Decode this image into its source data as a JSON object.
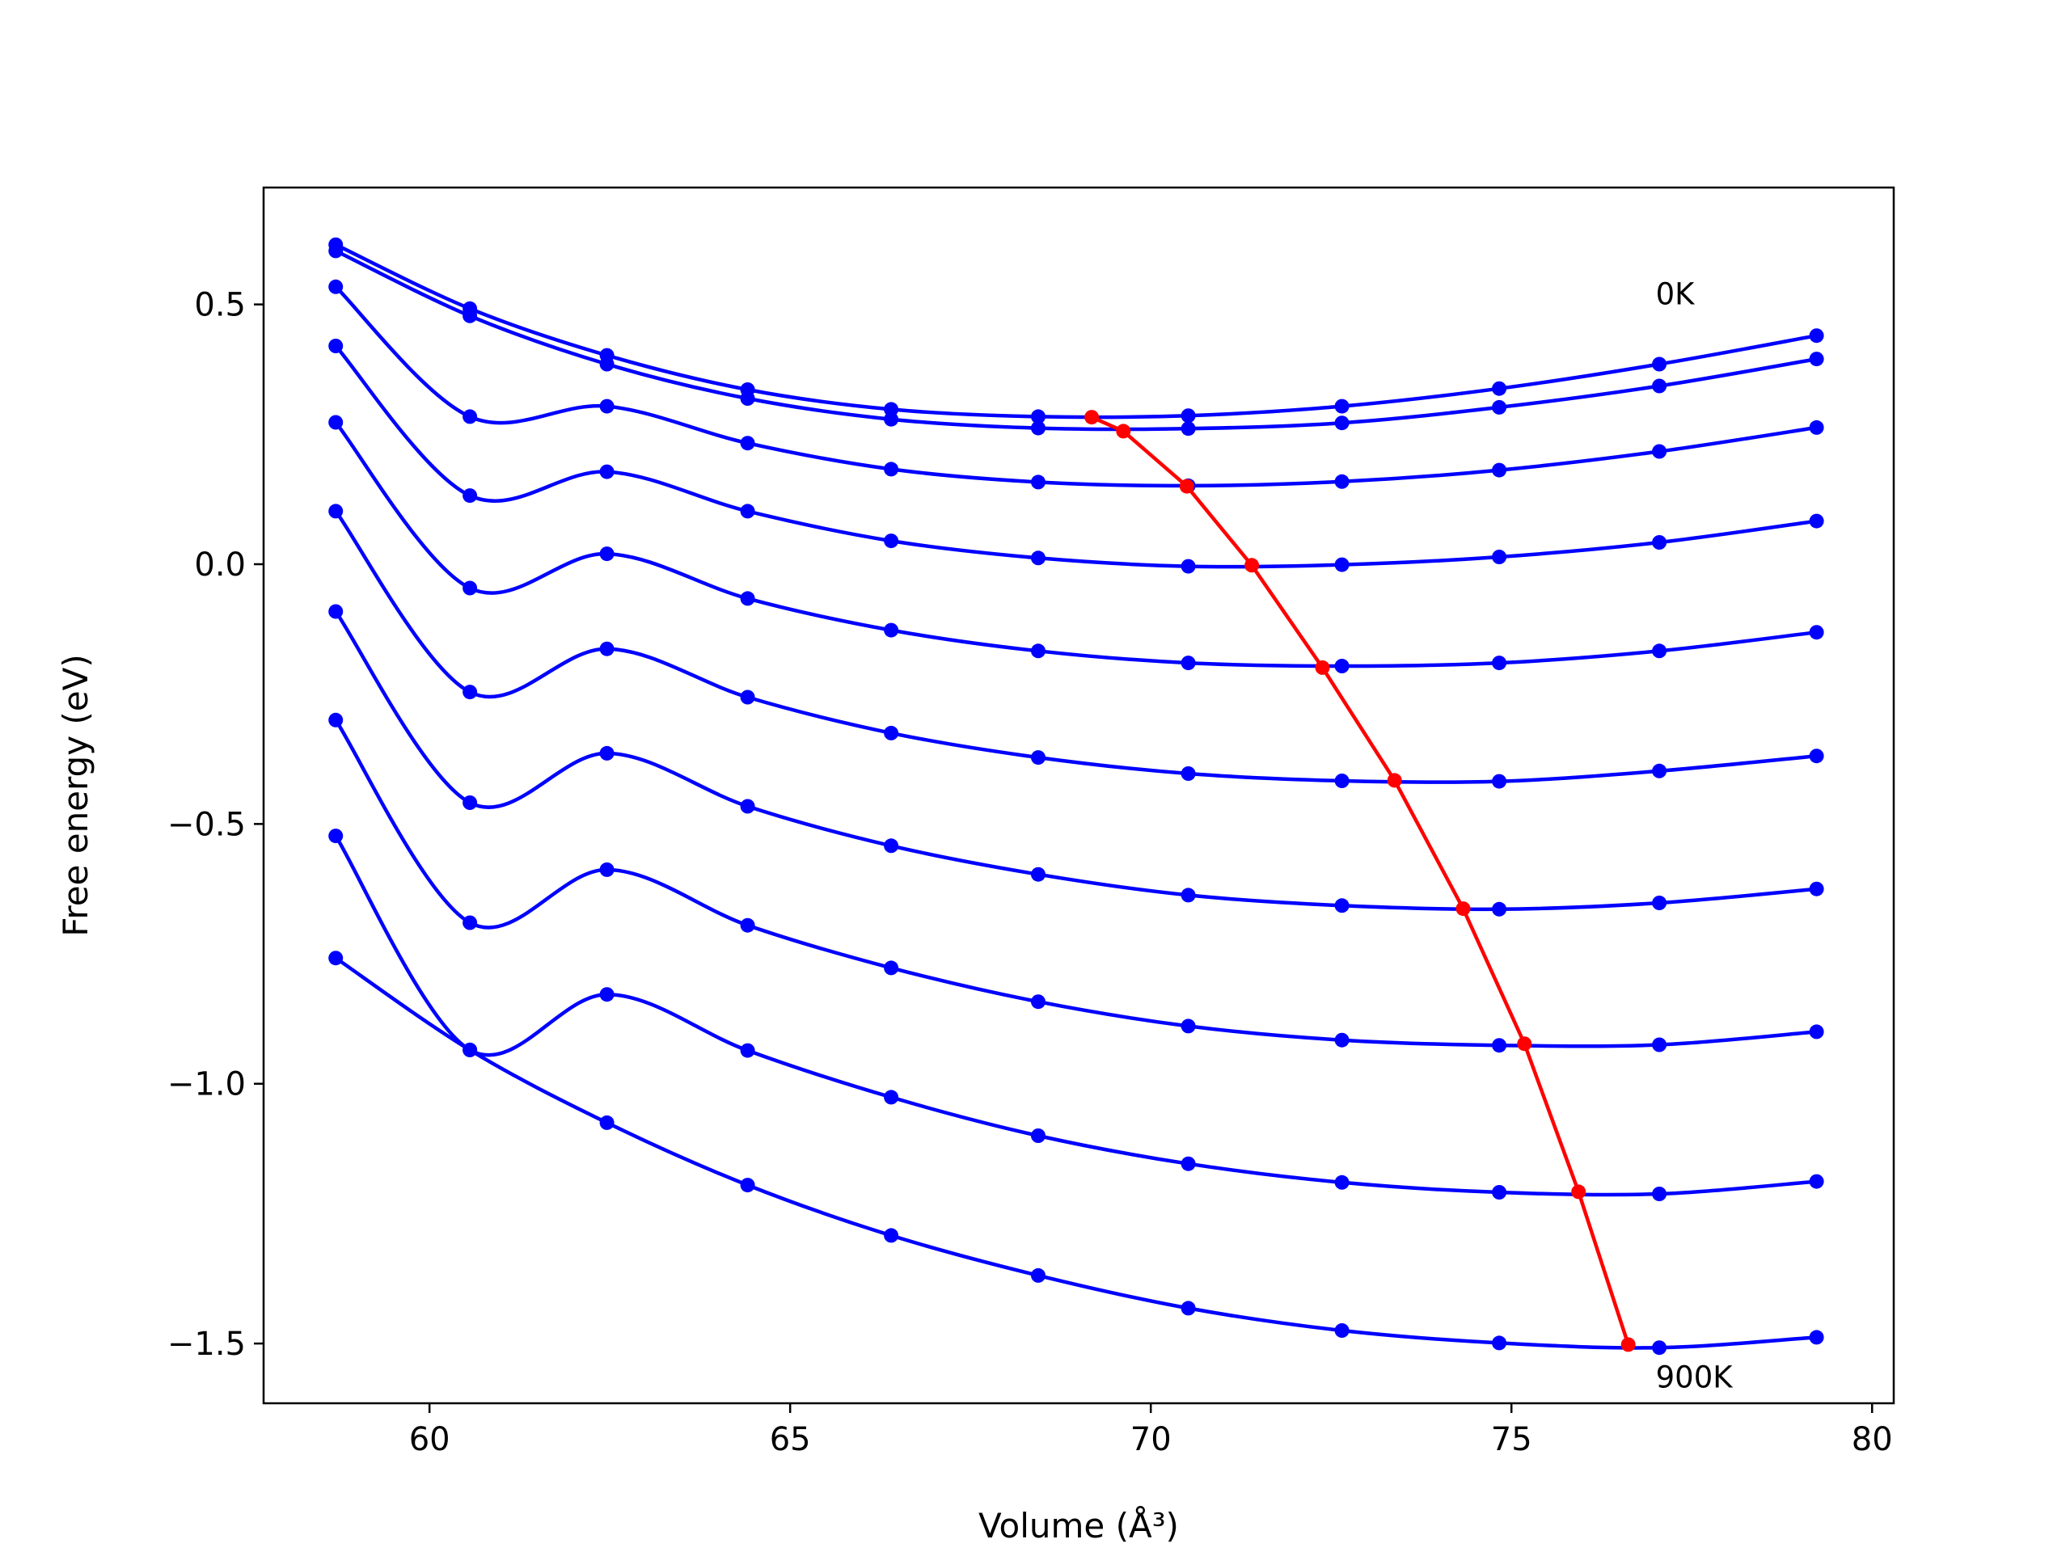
{
  "chart_data": {
    "type": "line",
    "title": "",
    "xlabel": "Volume (Å³)",
    "ylabel": "Free energy (eV)",
    "xlim": [
      57.7,
      80.3
    ],
    "ylim": [
      -1.615,
      0.725
    ],
    "xticks": [
      60,
      65,
      70,
      75,
      80
    ],
    "xtick_labels": [
      "60",
      "65",
      "70",
      "75",
      "80"
    ],
    "yticks": [
      0.5,
      0.0,
      -0.5,
      -1.0,
      -1.5
    ],
    "ytick_labels": [
      "0.5",
      "0.0",
      "−0.5",
      "−1.0",
      "−1.5"
    ],
    "grid": false,
    "legend": null,
    "colors": {
      "isotherms": "#0000ff",
      "minimum_path": "#ff0000"
    },
    "x": [
      58.7,
      60.56,
      62.46,
      64.41,
      66.4,
      68.44,
      70.52,
      72.65,
      74.83,
      77.05,
      79.23
    ],
    "series": [
      {
        "values": [
          0.615,
          0.492,
          0.402,
          0.336,
          0.298,
          0.284,
          0.286,
          0.304,
          0.338,
          0.385,
          0.44
        ]
      },
      {
        "values": [
          0.603,
          0.478,
          0.385,
          0.319,
          0.279,
          0.262,
          0.261,
          0.272,
          0.302,
          0.343,
          0.395
        ]
      },
      {
        "values": [
          0.534,
          0.284,
          0.304,
          0.233,
          0.183,
          0.158,
          0.151,
          0.159,
          0.181,
          0.217,
          0.263
        ]
      },
      {
        "values": [
          0.42,
          0.132,
          0.178,
          0.102,
          0.045,
          0.012,
          -0.004,
          -0.001,
          0.014,
          0.042,
          0.083
        ]
      },
      {
        "values": [
          0.273,
          -0.046,
          0.02,
          -0.066,
          -0.127,
          -0.167,
          -0.19,
          -0.196,
          -0.19,
          -0.167,
          -0.131
        ]
      },
      {
        "values": [
          0.102,
          -0.246,
          -0.163,
          -0.256,
          -0.325,
          -0.372,
          -0.403,
          -0.417,
          -0.418,
          -0.398,
          -0.369
        ]
      },
      {
        "values": [
          -0.091,
          -0.459,
          -0.364,
          -0.466,
          -0.542,
          -0.597,
          -0.637,
          -0.657,
          -0.664,
          -0.652,
          -0.625
        ]
      },
      {
        "values": [
          -0.3,
          -0.69,
          -0.588,
          -0.695,
          -0.777,
          -0.842,
          -0.889,
          -0.916,
          -0.926,
          -0.925,
          -0.9
        ]
      },
      {
        "values": [
          -0.523,
          -0.935,
          -0.828,
          -0.936,
          -1.026,
          -1.1,
          -1.154,
          -1.19,
          -1.209,
          -1.212,
          -1.188
        ]
      },
      {
        "values": [
          -0.758,
          -0.935,
          -1.075,
          -1.195,
          -1.292,
          -1.369,
          -1.432,
          -1.475,
          -1.499,
          -1.508,
          -1.488
        ]
      }
    ],
    "minimum_path": {
      "x": [
        69.18,
        69.62,
        70.5,
        71.4,
        72.38,
        73.38,
        74.33,
        75.18,
        75.93,
        76.62
      ],
      "y": [
        0.283,
        0.256,
        0.15,
        -0.002,
        -0.199,
        -0.416,
        -0.663,
        -0.923,
        -1.208,
        -1.502
      ]
    },
    "annotations": [
      {
        "text": "0K",
        "x": 77.0,
        "y": 0.5
      },
      {
        "text": "900K",
        "x": 77.0,
        "y": -1.585
      }
    ]
  }
}
